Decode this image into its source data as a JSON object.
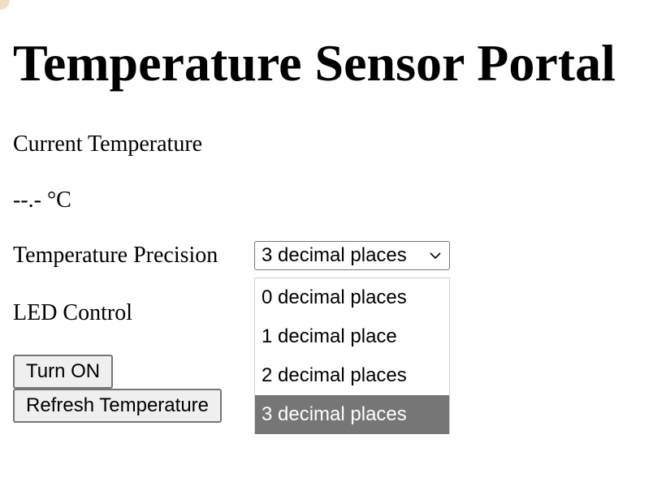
{
  "page": {
    "title": "Temperature Sensor Portal"
  },
  "current_temperature": {
    "label": "Current Temperature",
    "value": "--.- °C"
  },
  "precision": {
    "label": "Temperature Precision",
    "selected": "3 decimal places",
    "options": [
      "0 decimal places",
      "1 decimal place",
      "2 decimal places",
      "3 decimal places"
    ],
    "highlight_color": "#767676"
  },
  "led": {
    "label": "LED Control",
    "button_label": "Turn ON"
  },
  "refresh": {
    "button_label": "Refresh Temperature"
  },
  "icons": {
    "dropdown_indicator": "chevron-down-icon"
  }
}
